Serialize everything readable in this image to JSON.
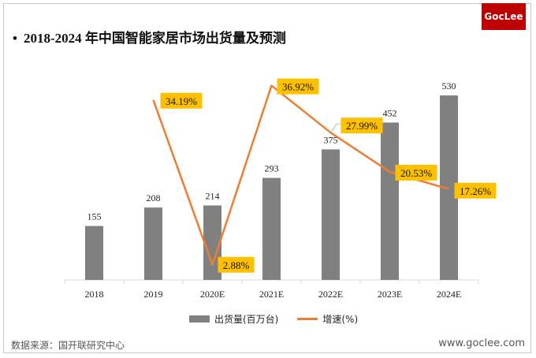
{
  "logo": "GocLee",
  "title": "2018-2024 年中国智能家居市场出货量及预测",
  "chart_data": {
    "type": "bar+line",
    "title": "2018-2024 年中国智能家居市场出货量及预测",
    "categories": [
      "2018",
      "2019",
      "2020E",
      "2021E",
      "2022E",
      "2023E",
      "2024E"
    ],
    "series": [
      {
        "name": "出货量(百万台)",
        "type": "bar",
        "values": [
          155,
          208,
          214,
          293,
          375,
          452,
          530
        ],
        "color": "#808080",
        "labels": [
          "155",
          "208",
          "214",
          "293",
          "375",
          "452",
          "530"
        ]
      },
      {
        "name": "增速(%)",
        "type": "line",
        "values": [
          null,
          34.19,
          2.88,
          36.92,
          27.99,
          20.53,
          17.26
        ],
        "color": "#ed7d31",
        "labels": [
          "",
          "34.19%",
          "2.88%",
          "36.92%",
          "27.99%",
          "20.53%",
          "17.26%"
        ],
        "label_bg": "#ffc000"
      }
    ],
    "legend": "bottom",
    "grid": false
  },
  "source": "数据来源：国开联研究中心",
  "site": "www.goclee.com"
}
